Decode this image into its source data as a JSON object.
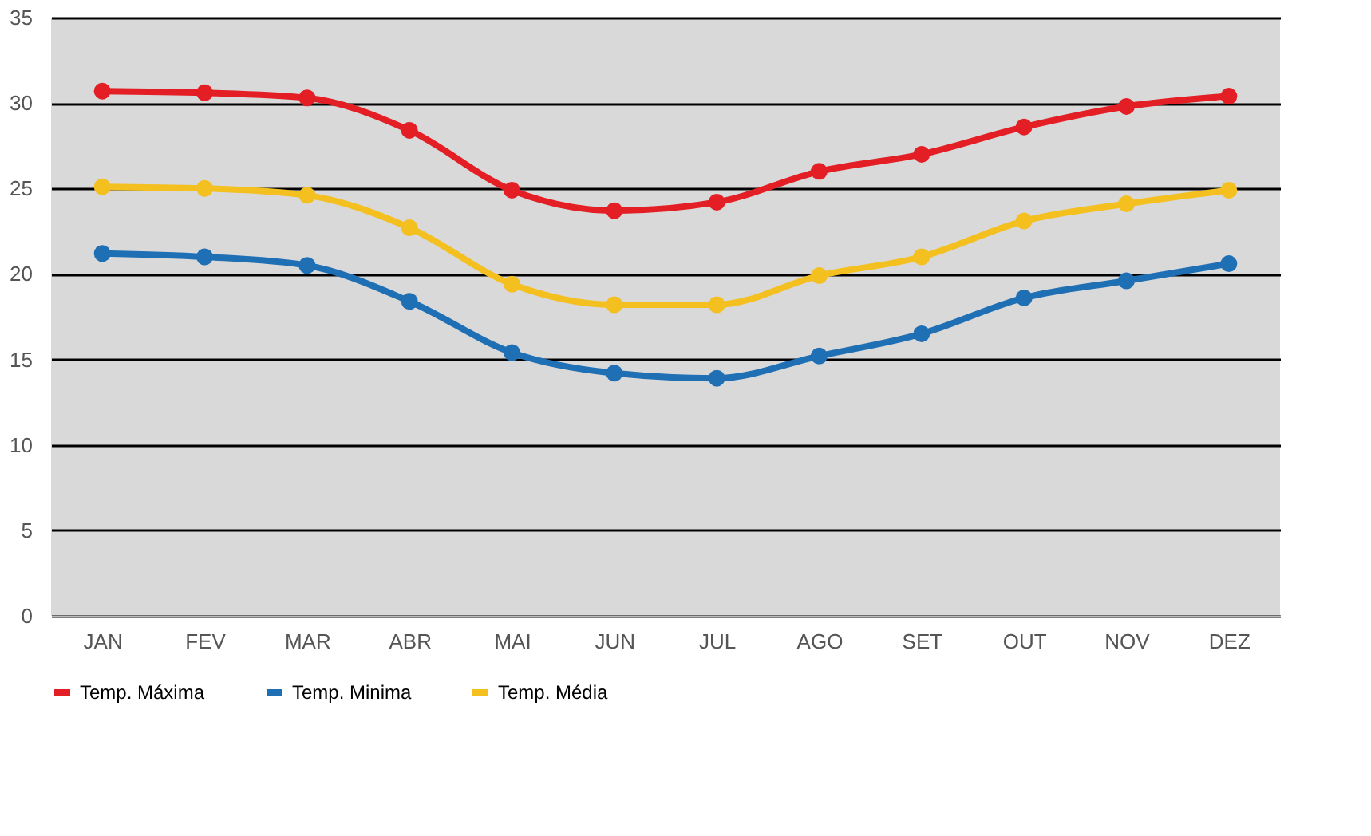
{
  "chart_data": {
    "type": "line",
    "categories": [
      "JAN",
      "FEV",
      "MAR",
      "ABR",
      "MAI",
      "JUN",
      "JUL",
      "AGO",
      "SET",
      "OUT",
      "NOV",
      "DEZ"
    ],
    "series": [
      {
        "name": "Temp. Máxima",
        "color": "#e31e24",
        "values": [
          30.7,
          30.6,
          30.3,
          28.4,
          24.9,
          23.7,
          24.2,
          26.0,
          27.0,
          28.6,
          29.8,
          30.4
        ]
      },
      {
        "name": "Temp. Minima",
        "color": "#1f6fb4",
        "values": [
          21.2,
          21.0,
          20.5,
          18.4,
          15.4,
          14.2,
          13.9,
          15.2,
          16.5,
          18.6,
          19.6,
          20.6
        ]
      },
      {
        "name": "Temp. Média",
        "color": "#f4c020",
        "values": [
          25.1,
          25.0,
          24.6,
          22.7,
          19.4,
          18.2,
          18.2,
          19.9,
          21.0,
          23.1,
          24.1,
          24.9
        ]
      }
    ],
    "ylim": [
      0,
      35
    ],
    "yticks": [
      0,
      5,
      10,
      15,
      20,
      25,
      30,
      35
    ],
    "grid": "y",
    "legend": "bottom",
    "marker": "circle",
    "line_style": "solid"
  }
}
